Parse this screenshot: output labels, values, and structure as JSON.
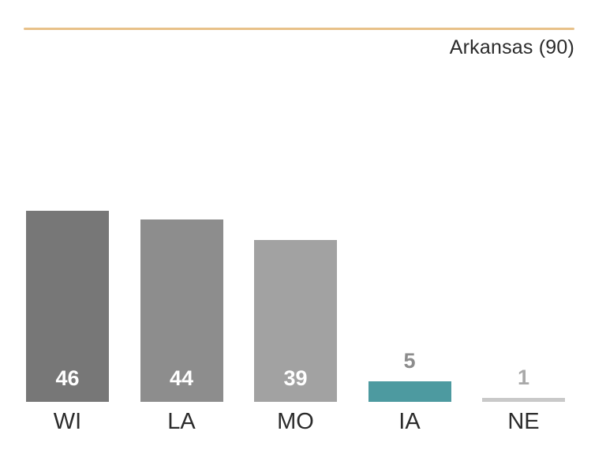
{
  "header": {
    "rule_color": "#e8c189"
  },
  "chart_data": {
    "type": "bar",
    "title": "Arkansas (90)",
    "categories": [
      "WI",
      "LA",
      "MO",
      "IA",
      "NE"
    ],
    "values": [
      46,
      44,
      39,
      5,
      1
    ],
    "bar_colors": [
      "#777777",
      "#8d8d8d",
      "#a2a2a2",
      "#4d9aa0",
      "#c9c9c9"
    ],
    "value_label_colors": [
      "#ffffff",
      "#ffffff",
      "#ffffff",
      "#8c8c8c",
      "#a9a9a9"
    ],
    "value_label_placement": [
      "inside",
      "inside",
      "inside",
      "above",
      "above"
    ],
    "text_color": "#2b2b2b",
    "xlabel": "",
    "ylabel": "",
    "ylim": [
      0,
      46
    ],
    "grid": false,
    "axes": "none",
    "legend": "none"
  }
}
